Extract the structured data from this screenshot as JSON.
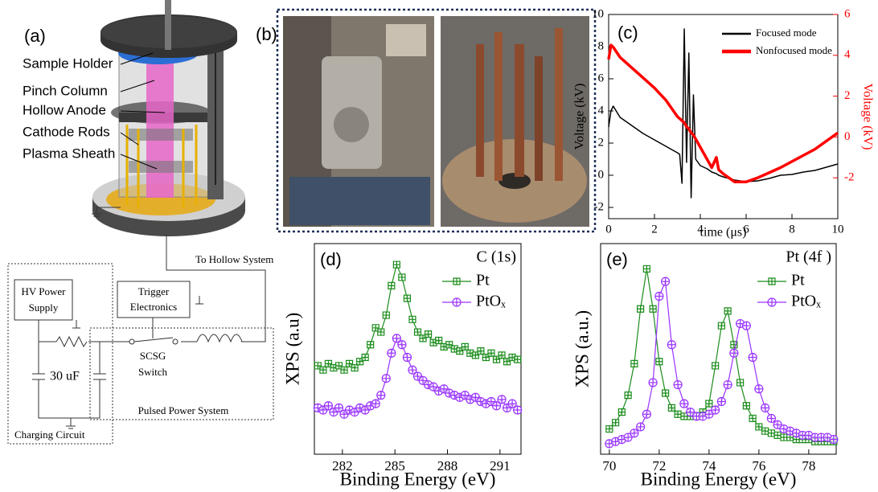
{
  "panels": {
    "a": {
      "label": "(a)",
      "parts": [
        "Sample Holder",
        "Pinch Column",
        "Hollow Anode",
        "Cathode Rods",
        "Plasma Sheath"
      ],
      "circuit": {
        "hv_power_supply": [
          "HV Power",
          "Supply"
        ],
        "trigger_electronics": [
          "Trigger",
          "Electronics"
        ],
        "switch": [
          "SCSG",
          "Switch"
        ],
        "capacitor": "30 uF",
        "to_hollow": "To Hollow System",
        "pulsed_power": "Pulsed Power System",
        "charging": "Charging Circuit"
      }
    },
    "b": {
      "label": "(b)"
    }
  },
  "chart_data": [
    {
      "type": "line",
      "panel_label": "(c)",
      "xlabel": "time (μs)",
      "ylabel": "Voltage (kV)",
      "y2label": "Voltage (kV)",
      "x": [
        0,
        0.1,
        0.2,
        0.5,
        1,
        1.5,
        2,
        2.5,
        3,
        3.1,
        3.2,
        3.3,
        3.4,
        3.5,
        3.6,
        3.7,
        3.8,
        4,
        4.3,
        4.5,
        4.7,
        4.8,
        5,
        5.5,
        6,
        6.5,
        7,
        7.5,
        8,
        8.5,
        9,
        9.5,
        10
      ],
      "series": [
        {
          "name": "Focused mode",
          "color": "#000000",
          "width": 1.5,
          "values": [
            3.0,
            4.0,
            4.3,
            3.6,
            3.1,
            2.6,
            2.2,
            1.8,
            1.4,
            1.3,
            -0.5,
            9.1,
            0.8,
            7.6,
            -1.4,
            5.0,
            1.0,
            0.6,
            0.4,
            0.2,
            0.1,
            0,
            -0.1,
            -0.3,
            -0.4,
            -0.35,
            -0.2,
            0,
            0.05,
            0.2,
            0.3,
            0.5,
            0.7
          ]
        },
        {
          "name": "Nonfocused mode",
          "color": "#ff0000",
          "width": 3.5,
          "axis": "y2",
          "values": [
            3.8,
            4.5,
            4.4,
            3.9,
            3.4,
            2.9,
            2.4,
            1.8,
            1.0,
            0.9,
            0.8,
            0.7,
            0.5,
            0.4,
            0.2,
            0.1,
            -0.1,
            -0.5,
            -1.1,
            -1.5,
            -1.0,
            -1.6,
            -1.8,
            -2.2,
            -2.2,
            -2.0,
            -1.75,
            -1.5,
            -1.2,
            -0.9,
            -0.6,
            -0.2,
            0.2
          ]
        }
      ],
      "xlim": [
        0,
        10
      ],
      "xticks": [
        0,
        2,
        4,
        6,
        8,
        10
      ],
      "ylim": [
        -2.7,
        10
      ],
      "yticks": [
        -2,
        0,
        2,
        4,
        6,
        8,
        10
      ],
      "y2lim": [
        -4,
        6
      ],
      "y2ticks": [
        -2,
        0,
        2,
        4,
        6
      ],
      "legend": "upper right"
    },
    {
      "type": "line",
      "panel_label": "(d)",
      "annotation": "C (1s)",
      "xlabel": "Binding Energy (eV)",
      "ylabel": "XPS (a.u)",
      "x": [
        280.6,
        280.9,
        281.2,
        281.5,
        281.8,
        282.1,
        282.4,
        282.7,
        283.0,
        283.3,
        283.6,
        283.9,
        284.2,
        284.5,
        284.8,
        285.1,
        285.4,
        285.7,
        286.0,
        286.3,
        286.6,
        286.9,
        287.2,
        287.5,
        287.8,
        288.1,
        288.4,
        288.7,
        289.0,
        289.3,
        289.6,
        289.9,
        290.2,
        290.5,
        290.8,
        291.1,
        291.4,
        291.7,
        292.0
      ],
      "series": [
        {
          "name": "Pt",
          "color": "#1a8c1a",
          "marker": "square-plus",
          "values": [
            42,
            40,
            43,
            41,
            42,
            40,
            43,
            41,
            44,
            46,
            52,
            60,
            58,
            66,
            80,
            90,
            84,
            74,
            64,
            58,
            55,
            57,
            53,
            54,
            51,
            52,
            50,
            49,
            51,
            48,
            47,
            49,
            46,
            48,
            45,
            47,
            44,
            46,
            45
          ]
        },
        {
          "name": "PtOₓ",
          "color": "#9933ff",
          "marker": "circle-plus",
          "values": [
            22,
            21,
            23,
            20,
            22,
            19,
            21,
            20,
            22,
            21,
            23,
            24,
            28,
            36,
            48,
            55,
            52,
            46,
            40,
            37,
            35,
            33,
            32,
            30,
            31,
            29,
            28,
            27,
            28,
            26,
            27,
            25,
            24,
            25,
            23,
            26,
            22,
            24,
            21
          ]
        }
      ],
      "xlim": [
        280.4,
        292.2
      ],
      "xticks": [
        282,
        285,
        288,
        291
      ],
      "ylim": [
        0,
        100
      ],
      "legend": "upper right"
    },
    {
      "type": "line",
      "panel_label": "(e)",
      "annotation": "Pt (4f )",
      "xlabel": "Binding Energy (eV)",
      "ylabel": "XPS (a.u.)",
      "x": [
        70,
        70.25,
        70.5,
        70.75,
        71,
        71.25,
        71.5,
        71.75,
        72,
        72.25,
        72.5,
        72.75,
        73,
        73.25,
        73.5,
        73.75,
        74,
        74.25,
        74.5,
        74.75,
        75,
        75.25,
        75.5,
        75.75,
        76,
        76.25,
        76.5,
        76.75,
        77,
        77.25,
        77.5,
        77.75,
        78,
        78.25,
        78.5,
        78.75,
        79
      ],
      "series": [
        {
          "name": "Pt",
          "color": "#1a8c1a",
          "marker": "square-plus",
          "values": [
            12,
            15,
            20,
            28,
            43,
            69,
            88,
            69,
            44,
            29,
            22,
            19,
            18,
            18,
            18,
            20,
            24,
            42,
            61,
            68,
            52,
            34,
            23,
            17,
            13,
            11,
            10,
            9,
            8,
            8,
            7,
            7,
            7,
            6,
            6,
            6,
            6
          ]
        },
        {
          "name": "PtOₓ",
          "color": "#9933ff",
          "marker": "circle-plus",
          "values": [
            5,
            6,
            7,
            8,
            10,
            13,
            19,
            34,
            75,
            82,
            52,
            33,
            24,
            20,
            18,
            18,
            19,
            21,
            25,
            33,
            48,
            62,
            61,
            46,
            31,
            22,
            17,
            14,
            12,
            11,
            10,
            9,
            9,
            8,
            8,
            8,
            7
          ]
        }
      ],
      "xlim": [
        69.65,
        79.1
      ],
      "xticks": [
        70,
        72,
        74,
        76,
        78
      ],
      "ylim": [
        0,
        100
      ],
      "legend": "upper right"
    }
  ]
}
